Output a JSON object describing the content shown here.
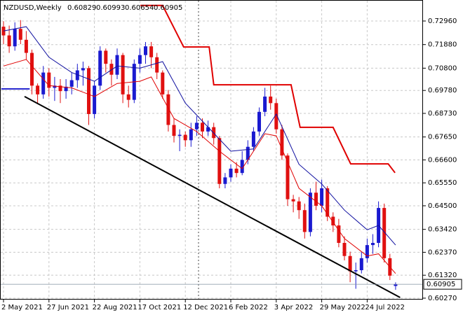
{
  "chart_data": {
    "type": "candlestick",
    "title": "NZDUSD,Weekly",
    "categories": [
      "2 May 2021",
      null,
      null,
      null,
      null,
      null,
      null,
      null,
      "27 Jun 2021",
      null,
      null,
      null,
      null,
      null,
      null,
      null,
      "22 Aug 2021",
      null,
      null,
      null,
      null,
      null,
      null,
      null,
      "17 Oct 2021",
      null,
      null,
      null,
      null,
      null,
      null,
      null,
      "12 Dec 2021",
      null,
      null,
      null,
      null,
      null,
      null,
      null,
      "6 Feb 2022",
      null,
      null,
      null,
      null,
      null,
      null,
      null,
      "3 Apr 2022",
      null,
      null,
      null,
      null,
      null,
      null,
      null,
      "29 May 2022",
      null,
      null,
      null,
      null,
      null,
      null,
      null,
      "24 Jul 2022",
      null,
      null,
      null,
      null,
      null
    ],
    "open": [
      0.727,
      0.723,
      0.718,
      0.726,
      0.721,
      0.715,
      0.7,
      0.696,
      0.706,
      0.699,
      0.7,
      0.6975,
      0.6995,
      0.7025,
      0.707,
      0.708,
      0.687,
      0.7,
      0.716,
      0.71,
      0.705,
      0.714,
      0.696,
      0.6935,
      0.71,
      0.714,
      0.718,
      0.713,
      0.706,
      0.696,
      0.682,
      0.677,
      0.6775,
      0.675,
      0.68,
      0.683,
      0.679,
      0.681,
      0.676,
      0.655,
      0.658,
      0.662,
      0.66,
      0.666,
      0.672,
      0.679,
      0.688,
      0.695,
      0.692,
      0.68,
      0.668,
      0.648,
      0.647,
      0.643,
      0.633,
      0.651,
      0.645,
      0.653,
      0.64,
      0.636,
      0.628,
      0.622,
      0.615,
      0.6155,
      0.621,
      0.627,
      0.628,
      0.644,
      0.621,
      0.60829
    ],
    "high": [
      0.7295,
      0.7275,
      0.729,
      0.73,
      0.725,
      0.7165,
      0.701,
      0.709,
      0.708,
      0.704,
      0.703,
      0.703,
      0.706,
      0.71,
      0.711,
      0.709,
      0.702,
      0.718,
      0.717,
      0.712,
      0.717,
      0.715,
      0.7,
      0.712,
      0.717,
      0.72,
      0.72,
      0.715,
      0.707,
      0.698,
      0.685,
      0.68,
      0.679,
      0.683,
      0.686,
      0.685,
      0.684,
      0.683,
      0.677,
      0.66,
      0.664,
      0.665,
      0.67,
      0.675,
      0.681,
      0.69,
      0.699,
      0.7,
      0.694,
      0.682,
      0.669,
      0.65,
      0.649,
      0.646,
      0.653,
      0.656,
      0.657,
      0.654,
      0.642,
      0.639,
      0.631,
      0.624,
      0.619,
      0.624,
      0.63,
      0.632,
      0.647,
      0.646,
      0.623,
      0.60993
    ],
    "low": [
      0.719,
      0.715,
      0.716,
      0.719,
      0.712,
      0.696,
      0.692,
      0.694,
      0.695,
      0.693,
      0.692,
      0.694,
      0.696,
      0.699,
      0.7,
      0.682,
      0.685,
      0.698,
      0.706,
      0.7,
      0.703,
      0.692,
      0.69,
      0.692,
      0.706,
      0.71,
      0.708,
      0.703,
      0.694,
      0.679,
      0.674,
      0.67,
      0.672,
      0.672,
      0.677,
      0.676,
      0.677,
      0.673,
      0.653,
      0.653,
      0.656,
      0.658,
      0.659,
      0.664,
      0.67,
      0.677,
      0.686,
      0.689,
      0.678,
      0.666,
      0.645,
      0.642,
      0.639,
      0.63,
      0.631,
      0.643,
      0.642,
      0.638,
      0.633,
      0.626,
      0.62,
      0.61,
      0.607,
      0.614,
      0.619,
      0.623,
      0.626,
      0.619,
      0.611,
      0.60654
    ],
    "close": [
      0.723,
      0.718,
      0.726,
      0.721,
      0.715,
      0.7,
      0.696,
      0.706,
      0.699,
      0.7,
      0.6975,
      0.6995,
      0.7025,
      0.707,
      0.708,
      0.687,
      0.7,
      0.716,
      0.71,
      0.705,
      0.714,
      0.696,
      0.6935,
      0.71,
      0.714,
      0.718,
      0.713,
      0.706,
      0.696,
      0.682,
      0.677,
      0.6775,
      0.675,
      0.68,
      0.683,
      0.679,
      0.681,
      0.676,
      0.655,
      0.658,
      0.662,
      0.66,
      0.666,
      0.672,
      0.679,
      0.688,
      0.695,
      0.692,
      0.68,
      0.668,
      0.648,
      0.647,
      0.643,
      0.633,
      0.651,
      0.645,
      0.653,
      0.64,
      0.636,
      0.628,
      0.622,
      0.615,
      0.6155,
      0.621,
      0.627,
      0.628,
      0.644,
      0.621,
      0.613,
      0.60905
    ],
    "up_color": "#1a1ad0",
    "down_color": "#e01010",
    "ylim": [
      0.60204,
      0.73793
    ],
    "yticks": [
      {
        "value": 0.7296,
        "label": "0.72960"
      },
      {
        "value": 0.7188,
        "label": "0.71880"
      },
      {
        "value": 0.708,
        "label": "0.70800"
      },
      {
        "value": 0.6978,
        "label": "0.69780"
      },
      {
        "value": 0.6873,
        "label": "0.68730"
      },
      {
        "value": 0.6765,
        "label": "0.67650"
      },
      {
        "value": 0.666,
        "label": "0.66600"
      },
      {
        "value": 0.6555,
        "label": "0.65550"
      },
      {
        "value": 0.645,
        "label": "0.64500"
      },
      {
        "value": 0.6342,
        "label": "0.63420"
      },
      {
        "value": 0.6237,
        "label": "0.62370"
      },
      {
        "value": 0.6132,
        "label": "0.61320"
      },
      {
        "value": 0.6027,
        "label": "0.60270"
      }
    ],
    "grid": true,
    "overlays": [
      {
        "color": "#e00000",
        "width": 2,
        "x": [
          24.1,
          28.0,
          31.7,
          36.2,
          37.0,
          50.6,
          52.2,
          58.0,
          61.1,
          67.7,
          68.9
        ],
        "values": [
          0.7367,
          0.7367,
          0.7177,
          0.7177,
          0.7004,
          0.7004,
          0.6809,
          0.6809,
          0.6642,
          0.6642,
          0.6601
        ]
      },
      {
        "color": "#1010a0",
        "width": 1,
        "x": [
          0,
          4,
          8,
          12,
          16,
          20,
          24,
          28,
          32,
          36,
          40,
          44,
          48,
          52,
          56,
          60,
          64,
          66,
          69
        ],
        "values": [
          0.725,
          0.727,
          0.713,
          0.706,
          0.702,
          0.709,
          0.708,
          0.711,
          0.692,
          0.681,
          0.67,
          0.671,
          0.687,
          0.664,
          0.655,
          0.643,
          0.634,
          0.636,
          0.627
        ]
      },
      {
        "color": "#e00000",
        "width": 1,
        "x": [
          0,
          4,
          8,
          12,
          16,
          20,
          24,
          26,
          30,
          34,
          38,
          42,
          46,
          48,
          52,
          56,
          60,
          64,
          66,
          69
        ],
        "values": [
          0.709,
          0.712,
          0.7,
          0.699,
          0.695,
          0.701,
          0.702,
          0.704,
          0.685,
          0.679,
          0.67,
          0.662,
          0.678,
          0.677,
          0.653,
          0.645,
          0.63,
          0.622,
          0.623,
          0.614
        ]
      },
      {
        "color": "#000000",
        "width": 2,
        "x": [
          3.7,
          69.8
        ],
        "values": [
          0.695,
          0.603
        ]
      },
      {
        "color": "#2a2ad0",
        "width": 2,
        "x": [
          -0.4,
          4.6
        ],
        "values": [
          0.6985,
          0.6985
        ]
      }
    ]
  }
}
